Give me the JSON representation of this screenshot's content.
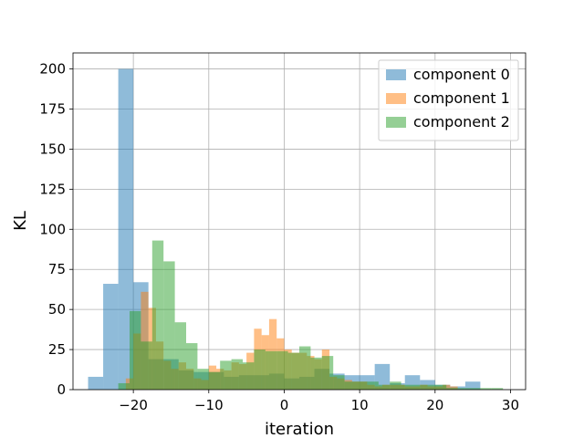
{
  "chart_data": {
    "type": "histogram",
    "xlabel": "iteration",
    "ylabel": "KL",
    "xlim": [
      -28,
      32
    ],
    "ylim": [
      0,
      210
    ],
    "grid": true,
    "legend_position": "top-right",
    "xticks": [
      -20,
      -10,
      0,
      10,
      20,
      30
    ],
    "yticks": [
      0,
      25,
      50,
      75,
      100,
      125,
      150,
      175,
      200
    ],
    "series": [
      {
        "name": "component 0",
        "color": "#1f77b4",
        "bins": [
          {
            "x0": -26.0,
            "x1": -24.0,
            "count": 8
          },
          {
            "x0": -24.0,
            "x1": -22.0,
            "count": 66
          },
          {
            "x0": -22.0,
            "x1": -20.0,
            "count": 200
          },
          {
            "x0": -20.0,
            "x1": -18.0,
            "count": 67
          },
          {
            "x0": -18.0,
            "x1": -16.0,
            "count": 19
          },
          {
            "x0": -16.0,
            "x1": -14.0,
            "count": 19
          },
          {
            "x0": -14.0,
            "x1": -12.0,
            "count": 12
          },
          {
            "x0": -12.0,
            "x1": -10.0,
            "count": 11
          },
          {
            "x0": -10.0,
            "x1": -8.0,
            "count": 11
          },
          {
            "x0": -8.0,
            "x1": -6.0,
            "count": 8
          },
          {
            "x0": -6.0,
            "x1": -4.0,
            "count": 9
          },
          {
            "x0": -4.0,
            "x1": -2.0,
            "count": 9
          },
          {
            "x0": -2.0,
            "x1": 0.0,
            "count": 10
          },
          {
            "x0": 0.0,
            "x1": 2.0,
            "count": 7
          },
          {
            "x0": 2.0,
            "x1": 4.0,
            "count": 8
          },
          {
            "x0": 4.0,
            "x1": 6.0,
            "count": 13
          },
          {
            "x0": 6.0,
            "x1": 8.0,
            "count": 10
          },
          {
            "x0": 8.0,
            "x1": 10.0,
            "count": 9
          },
          {
            "x0": 10.0,
            "x1": 12.0,
            "count": 9
          },
          {
            "x0": 12.0,
            "x1": 14.0,
            "count": 16
          },
          {
            "x0": 14.0,
            "x1": 16.0,
            "count": 4
          },
          {
            "x0": 16.0,
            "x1": 18.0,
            "count": 9
          },
          {
            "x0": 18.0,
            "x1": 20.0,
            "count": 6
          },
          {
            "x0": 20.0,
            "x1": 22.0,
            "count": 3
          },
          {
            "x0": 22.0,
            "x1": 24.0,
            "count": 2
          },
          {
            "x0": 24.0,
            "x1": 26.0,
            "count": 5
          }
        ]
      },
      {
        "name": "component 1",
        "color": "#ff7f0e",
        "bins": [
          {
            "x0": -21.0,
            "x1": -20.0,
            "count": 7
          },
          {
            "x0": -20.0,
            "x1": -19.0,
            "count": 35
          },
          {
            "x0": -19.0,
            "x1": -18.0,
            "count": 61
          },
          {
            "x0": -18.0,
            "x1": -17.0,
            "count": 51
          },
          {
            "x0": -17.0,
            "x1": -16.0,
            "count": 30
          },
          {
            "x0": -16.0,
            "x1": -15.0,
            "count": 18
          },
          {
            "x0": -15.0,
            "x1": -14.0,
            "count": 13
          },
          {
            "x0": -14.0,
            "x1": -13.0,
            "count": 17
          },
          {
            "x0": -13.0,
            "x1": -12.0,
            "count": 13
          },
          {
            "x0": -12.0,
            "x1": -11.0,
            "count": 7
          },
          {
            "x0": -11.0,
            "x1": -10.0,
            "count": 6
          },
          {
            "x0": -10.0,
            "x1": -9.0,
            "count": 15
          },
          {
            "x0": -9.0,
            "x1": -8.0,
            "count": 13
          },
          {
            "x0": -8.0,
            "x1": -7.0,
            "count": 12
          },
          {
            "x0": -7.0,
            "x1": -6.0,
            "count": 17
          },
          {
            "x0": -6.0,
            "x1": -5.0,
            "count": 16
          },
          {
            "x0": -5.0,
            "x1": -4.0,
            "count": 23
          },
          {
            "x0": -4.0,
            "x1": -3.0,
            "count": 38
          },
          {
            "x0": -3.0,
            "x1": -2.0,
            "count": 34
          },
          {
            "x0": -2.0,
            "x1": -1.0,
            "count": 44
          },
          {
            "x0": -1.0,
            "x1": 0.0,
            "count": 32
          },
          {
            "x0": 0.0,
            "x1": 1.0,
            "count": 25
          },
          {
            "x0": 1.0,
            "x1": 2.0,
            "count": 23
          },
          {
            "x0": 2.0,
            "x1": 3.0,
            "count": 23
          },
          {
            "x0": 3.0,
            "x1": 4.0,
            "count": 21
          },
          {
            "x0": 4.0,
            "x1": 5.0,
            "count": 19
          },
          {
            "x0": 5.0,
            "x1": 6.0,
            "count": 25
          },
          {
            "x0": 6.0,
            "x1": 7.0,
            "count": 8
          },
          {
            "x0": 7.0,
            "x1": 8.0,
            "count": 7
          },
          {
            "x0": 8.0,
            "x1": 9.0,
            "count": 6
          },
          {
            "x0": 9.0,
            "x1": 10.0,
            "count": 5
          },
          {
            "x0": 10.0,
            "x1": 11.0,
            "count": 5
          },
          {
            "x0": 11.0,
            "x1": 12.0,
            "count": 3
          },
          {
            "x0": 12.0,
            "x1": 13.0,
            "count": 2
          },
          {
            "x0": 13.0,
            "x1": 14.0,
            "count": 3
          },
          {
            "x0": 14.0,
            "x1": 15.0,
            "count": 3
          },
          {
            "x0": 15.0,
            "x1": 16.0,
            "count": 3
          },
          {
            "x0": 16.0,
            "x1": 17.0,
            "count": 2
          },
          {
            "x0": 17.0,
            "x1": 18.0,
            "count": 2
          },
          {
            "x0": 18.0,
            "x1": 19.0,
            "count": 3
          },
          {
            "x0": 19.0,
            "x1": 20.0,
            "count": 2
          },
          {
            "x0": 20.0,
            "x1": 21.0,
            "count": 2
          },
          {
            "x0": 21.0,
            "x1": 22.0,
            "count": 3
          },
          {
            "x0": 22.0,
            "x1": 23.0,
            "count": 2
          }
        ]
      },
      {
        "name": "component 2",
        "color": "#2ca02c",
        "bins": [
          {
            "x0": -22.0,
            "x1": -20.5,
            "count": 4
          },
          {
            "x0": -20.5,
            "x1": -19.0,
            "count": 49
          },
          {
            "x0": -19.0,
            "x1": -17.5,
            "count": 30
          },
          {
            "x0": -17.5,
            "x1": -16.0,
            "count": 93
          },
          {
            "x0": -16.0,
            "x1": -14.5,
            "count": 80
          },
          {
            "x0": -14.5,
            "x1": -13.0,
            "count": 42
          },
          {
            "x0": -13.0,
            "x1": -11.5,
            "count": 29
          },
          {
            "x0": -11.5,
            "x1": -10.0,
            "count": 13
          },
          {
            "x0": -10.0,
            "x1": -8.5,
            "count": 11
          },
          {
            "x0": -8.5,
            "x1": -7.0,
            "count": 18
          },
          {
            "x0": -7.0,
            "x1": -5.5,
            "count": 19
          },
          {
            "x0": -5.5,
            "x1": -4.0,
            "count": 17
          },
          {
            "x0": -4.0,
            "x1": -2.5,
            "count": 25
          },
          {
            "x0": -2.5,
            "x1": -1.0,
            "count": 24
          },
          {
            "x0": -1.0,
            "x1": 0.5,
            "count": 24
          },
          {
            "x0": 0.5,
            "x1": 2.0,
            "count": 23
          },
          {
            "x0": 2.0,
            "x1": 3.5,
            "count": 27
          },
          {
            "x0": 3.5,
            "x1": 5.0,
            "count": 20
          },
          {
            "x0": 5.0,
            "x1": 6.5,
            "count": 21
          },
          {
            "x0": 6.5,
            "x1": 8.0,
            "count": 9
          },
          {
            "x0": 8.0,
            "x1": 9.5,
            "count": 5
          },
          {
            "x0": 9.5,
            "x1": 11.0,
            "count": 5
          },
          {
            "x0": 11.0,
            "x1": 12.5,
            "count": 5
          },
          {
            "x0": 12.5,
            "x1": 14.0,
            "count": 3
          },
          {
            "x0": 14.0,
            "x1": 15.5,
            "count": 5
          },
          {
            "x0": 15.5,
            "x1": 17.0,
            "count": 3
          },
          {
            "x0": 17.0,
            "x1": 18.5,
            "count": 3
          },
          {
            "x0": 18.5,
            "x1": 20.0,
            "count": 3
          },
          {
            "x0": 20.0,
            "x1": 21.5,
            "count": 3
          },
          {
            "x0": 21.5,
            "x1": 23.0,
            "count": 1
          },
          {
            "x0": 23.0,
            "x1": 24.5,
            "count": 1
          },
          {
            "x0": 24.5,
            "x1": 26.0,
            "count": 1
          },
          {
            "x0": 26.0,
            "x1": 27.5,
            "count": 1
          },
          {
            "x0": 27.5,
            "x1": 29.0,
            "count": 1
          }
        ]
      }
    ]
  }
}
